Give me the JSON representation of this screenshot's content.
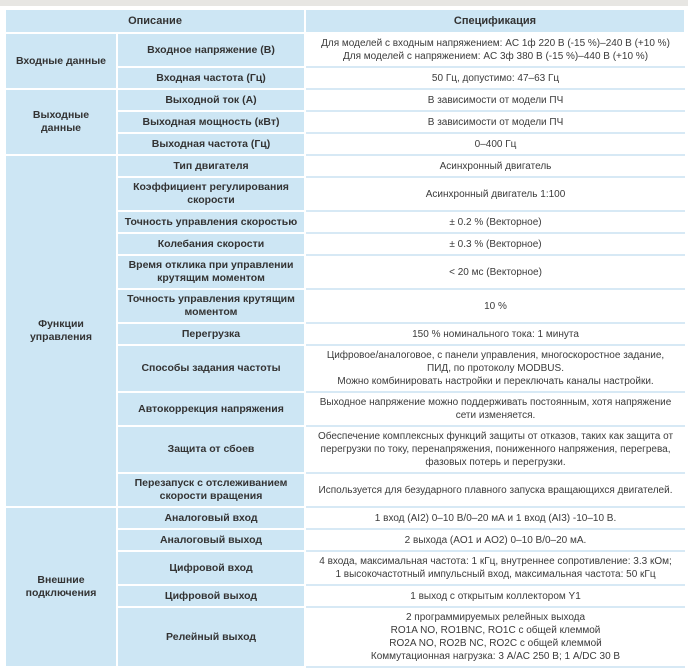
{
  "table": {
    "header": {
      "description": "Описание",
      "specification": "Спецификация"
    },
    "groups": [
      {
        "label": "Входные данные",
        "rows": [
          {
            "param": "Входное напряжение (В)",
            "spec_lines": [
              "Для моделей с входным напряжением: AC 1ф 220 В (-15 %)–240 В (+10 %)",
              "Для моделей с напряжением: AC 3ф 380 В (-15 %)–440 В (+10 %)"
            ]
          },
          {
            "param": "Входная частота (Гц)",
            "spec_lines": [
              "50 Гц, допустимо: 47–63 Гц"
            ]
          }
        ]
      },
      {
        "label": "Выходные данные",
        "rows": [
          {
            "param": "Выходной ток (А)",
            "spec_lines": [
              "В зависимости от модели ПЧ"
            ]
          },
          {
            "param": "Выходная мощность (кВт)",
            "spec_lines": [
              "В зависимости от модели ПЧ"
            ]
          },
          {
            "param": "Выходная частота (Гц)",
            "spec_lines": [
              "0–400 Гц"
            ]
          }
        ]
      },
      {
        "label": "Функции управления",
        "rows": [
          {
            "param": "Тип двигателя",
            "spec_lines": [
              "Асинхронный двигатель"
            ]
          },
          {
            "param": "Коэффициент регулирования скорости",
            "spec_lines": [
              "Асинхронный двигатель 1:100"
            ]
          },
          {
            "param": "Точность управления скоростью",
            "spec_lines": [
              "± 0.2 % (Векторное)"
            ]
          },
          {
            "param": "Колебания скорости",
            "spec_lines": [
              "± 0.3 % (Векторное)"
            ]
          },
          {
            "param": "Время отклика при управлении крутящим моментом",
            "spec_lines": [
              "< 20 мс (Векторное)"
            ]
          },
          {
            "param": "Точность управления крутящим моментом",
            "spec_lines": [
              "10 %"
            ]
          },
          {
            "param": "Перегрузка",
            "spec_lines": [
              "150 % номинального тока: 1 минута"
            ]
          },
          {
            "param": "Способы задания частоты",
            "spec_lines": [
              "Цифровое/аналоговое, с панели управления, многоскоростное задание, ПИД, по протоколу MODBUS.",
              "Можно комбинировать настройки и переключать каналы настройки."
            ]
          },
          {
            "param": "Автокоррекция напряжения",
            "spec_lines": [
              "Выходное напряжение можно поддерживать постоянным, хотя напряжение сети изменяется."
            ]
          },
          {
            "param": "Защита от сбоев",
            "spec_lines": [
              "Обеспечение комплексных функций защиты от отказов, таких как защита от перегрузки по току, перенапряжения, пониженного напряжения, перегрева, фазовых потерь и перегрузки."
            ]
          },
          {
            "param": "Перезапуск с отслеживанием скорости вращения",
            "spec_lines": [
              "Используется для безударного плавного запуска вращающихся двигателей."
            ]
          }
        ]
      },
      {
        "label": "Внешние подключения",
        "rows": [
          {
            "param": "Аналоговый вход",
            "spec_lines": [
              "1 вход (AI2) 0–10 В/0–20 мА и 1 вход (AI3) -10–10 В."
            ]
          },
          {
            "param": "Аналоговый выход",
            "spec_lines": [
              "2 выхода (AO1 и AO2) 0–10 В/0–20 мА."
            ]
          },
          {
            "param": "Цифровой вход",
            "spec_lines": [
              "4 входа, максимальная частота: 1 кГц, внутреннее сопротивление: 3.3 кОм;",
              "1 высокочастотный импульсный вход, максимальная частота: 50 кГц"
            ]
          },
          {
            "param": "Цифровой выход",
            "spec_lines": [
              "1 выход с открытым коллектором Y1"
            ]
          },
          {
            "param": "Релейный выход",
            "spec_lines": [
              "2 программируемых релейных выхода",
              "RO1A NO, RO1BNC, RO1C с общей клеммой",
              "RO2A NO, RO2B NC, RO2C с общей клеммой",
              "Коммутационная нагрузка: 3 А/AC 250 В; 1 А/DC 30 В"
            ]
          }
        ]
      }
    ],
    "colors": {
      "cell_blue": "#cde6f4",
      "divider_blue": "#d7e9f5",
      "text_bold": "#333333",
      "text_regular": "#3b3b3b"
    }
  }
}
